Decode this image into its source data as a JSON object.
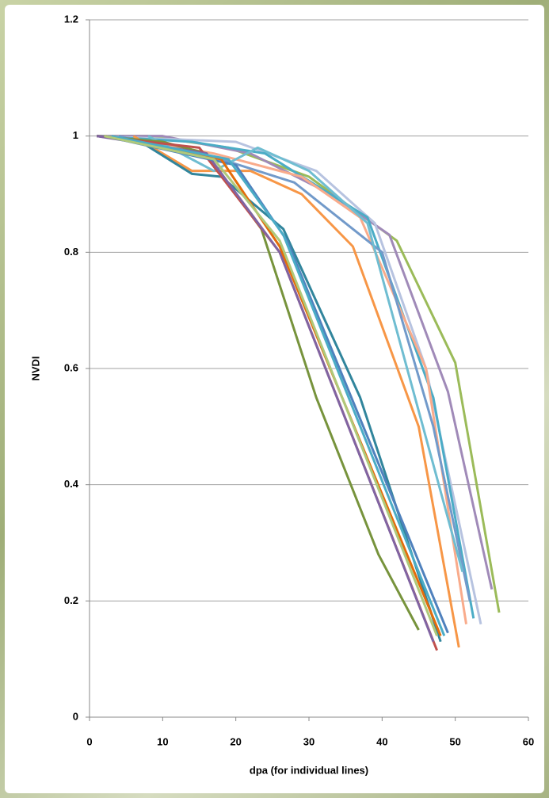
{
  "chart_data": {
    "type": "line",
    "x_label": "dpa (for individual lines)",
    "y_label": "NVDI",
    "xlim": [
      0,
      60
    ],
    "xticks": [
      0,
      10,
      20,
      30,
      40,
      50,
      60
    ],
    "ylim": [
      0,
      1.2
    ],
    "yticks": [
      0,
      0.2,
      0.4,
      0.6,
      0.8,
      1,
      1.2
    ],
    "grid": true,
    "series": [
      {
        "color": "#9BBB59",
        "x": [
          1,
          8,
          19,
          30,
          42,
          50,
          56
        ],
        "values": [
          1,
          1,
          0.98,
          0.93,
          0.82,
          0.61,
          0.18
        ]
      },
      {
        "color": "#A08AB8",
        "x": [
          1,
          10,
          22,
          33,
          41,
          49,
          55
        ],
        "values": [
          1,
          1,
          0.97,
          0.9,
          0.83,
          0.56,
          0.22
        ]
      },
      {
        "color": "#B7C3E0",
        "x": [
          1,
          20,
          31,
          39,
          46,
          53.5
        ],
        "values": [
          1,
          0.99,
          0.94,
          0.85,
          0.6,
          0.16
        ]
      },
      {
        "color": "#4BACC6",
        "x": [
          1,
          14,
          24,
          38,
          47,
          52.5
        ],
        "values": [
          1,
          0.99,
          0.97,
          0.86,
          0.55,
          0.17
        ]
      },
      {
        "color": "#F9AB8B",
        "x": [
          3,
          17,
          29,
          37,
          46,
          51.5
        ],
        "values": [
          1,
          0.97,
          0.93,
          0.86,
          0.6,
          0.16
        ]
      },
      {
        "color": "#F79646",
        "x": [
          6,
          14,
          22,
          29,
          36,
          45,
          50.5
        ],
        "values": [
          1,
          0.94,
          0.94,
          0.9,
          0.81,
          0.5,
          0.12
        ]
      },
      {
        "color": "#729ACA",
        "x": [
          4,
          18,
          28,
          40,
          47,
          52
        ],
        "values": [
          1,
          0.96,
          0.92,
          0.8,
          0.5,
          0.2
        ]
      },
      {
        "color": "#6FBDD1",
        "x": [
          8,
          17,
          23,
          30,
          38,
          51
        ],
        "values": [
          1,
          0.94,
          0.98,
          0.94,
          0.85,
          0.25
        ]
      },
      {
        "color": "#77933C",
        "x": [
          1,
          10,
          16,
          23.5,
          31,
          39.5,
          45
        ],
        "values": [
          1,
          0.99,
          0.97,
          0.84,
          0.55,
          0.28,
          0.15
        ]
      },
      {
        "color": "#31859C",
        "x": [
          1,
          7,
          14,
          18,
          26.5,
          37,
          48
        ],
        "values": [
          1,
          0.99,
          0.935,
          0.93,
          0.84,
          0.55,
          0.13
        ]
      },
      {
        "color": "#C0504D",
        "x": [
          1,
          15,
          26,
          47.5
        ],
        "values": [
          1,
          0.98,
          0.8,
          0.115
        ]
      },
      {
        "color": "#8064A2",
        "x": [
          1,
          16,
          26,
          47
        ],
        "values": [
          1,
          0.97,
          0.8,
          0.13
        ]
      },
      {
        "color": "#4F81BD",
        "x": [
          2,
          20,
          27,
          49
        ],
        "values": [
          1,
          0.95,
          0.82,
          0.145
        ]
      },
      {
        "color": "#E46C0A",
        "x": [
          2,
          18,
          26,
          48
        ],
        "values": [
          1,
          0.96,
          0.81,
          0.14
        ]
      },
      {
        "color": "#4BACC6",
        "x": [
          3,
          19,
          26.5,
          48.5
        ],
        "values": [
          1,
          0.96,
          0.83,
          0.14
        ]
      },
      {
        "color": "#AFC97A",
        "x": [
          2,
          17,
          26,
          47.5
        ],
        "values": [
          1,
          0.96,
          0.82,
          0.14
        ]
      }
    ]
  }
}
